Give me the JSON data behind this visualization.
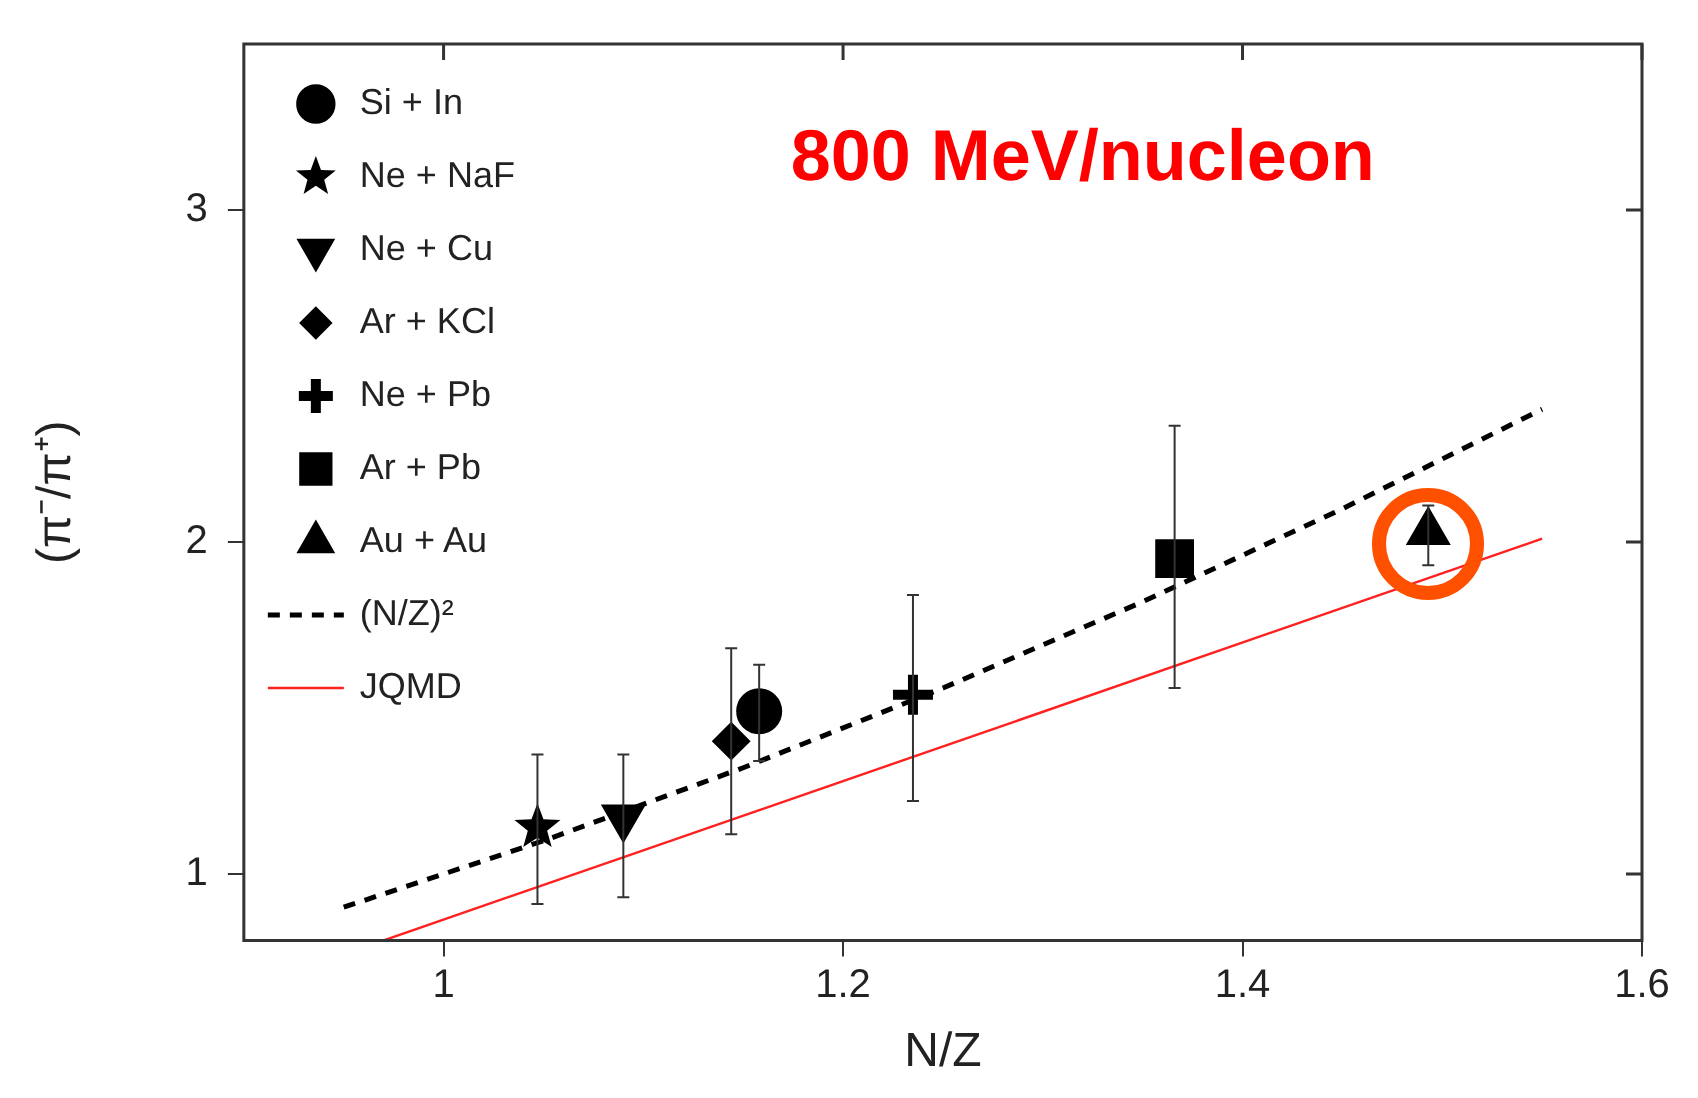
{
  "chart_data": {
    "type": "scatter",
    "xlabel": "N/Z",
    "ylabel": "(π⁻/π⁺)",
    "xlim": [
      0.9,
      1.6
    ],
    "ylim": [
      0.8,
      3.5
    ],
    "xticks": [
      1,
      1.2,
      1.4,
      1.6
    ],
    "yticks": [
      1,
      2,
      3
    ],
    "grid": false,
    "legend": "top left",
    "annotations": [
      "800 MeV/nucleon"
    ],
    "series": [
      {
        "name": "Si + In",
        "color": "#000000",
        "marker": "circle",
        "x": [
          1.158
        ],
        "values": [
          1.49
        ],
        "errors": [
          [
            1.34,
            1.63
          ]
        ]
      },
      {
        "name": "Ne + NaF",
        "color": "#000000",
        "marker": "star",
        "x": [
          1.047
        ],
        "values": [
          1.14
        ],
        "errors": [
          [
            0.91,
            1.36
          ]
        ]
      },
      {
        "name": "Ne + Cu",
        "color": "#000000",
        "marker": "triangle-down",
        "x": [
          1.09
        ],
        "values": [
          1.17
        ],
        "errors": [
          [
            0.93,
            1.36
          ]
        ]
      },
      {
        "name": "Ar + KCl",
        "color": "#000000",
        "marker": "diamond",
        "x": [
          1.144
        ],
        "values": [
          1.4
        ],
        "errors": [
          [
            1.12,
            1.68
          ]
        ]
      },
      {
        "name": "Ne + Pb",
        "color": "#000000",
        "marker": "cross",
        "x": [
          1.235
        ],
        "values": [
          1.54
        ],
        "errors": [
          [
            1.22,
            1.84
          ]
        ]
      },
      {
        "name": "Ar + Pb",
        "color": "#000000",
        "marker": "square",
        "x": [
          1.366
        ],
        "values": [
          1.95
        ],
        "errors": [
          [
            1.56,
            2.35
          ]
        ]
      },
      {
        "name": "Au + Au",
        "color": "#000000",
        "marker": "triangle",
        "x": [
          1.493
        ],
        "values": [
          2.03
        ],
        "errors": [
          [
            1.93,
            2.11
          ]
        ]
      },
      {
        "name": "(N/Z)²",
        "type": "line",
        "color": "#000000",
        "line_style": "dashed",
        "marker": "none",
        "x": [
          0.95,
          1.05,
          1.15,
          1.25,
          1.35,
          1.45,
          1.55
        ],
        "values": [
          0.9,
          1.1,
          1.32,
          1.56,
          1.82,
          2.1,
          2.4
        ]
      },
      {
        "name": "JQMD",
        "type": "line",
        "color": "#ff2020",
        "line_style": "solid",
        "marker": "none",
        "x": [
          0.97,
          1.55
        ],
        "values": [
          0.8,
          2.01
        ]
      }
    ]
  }
}
